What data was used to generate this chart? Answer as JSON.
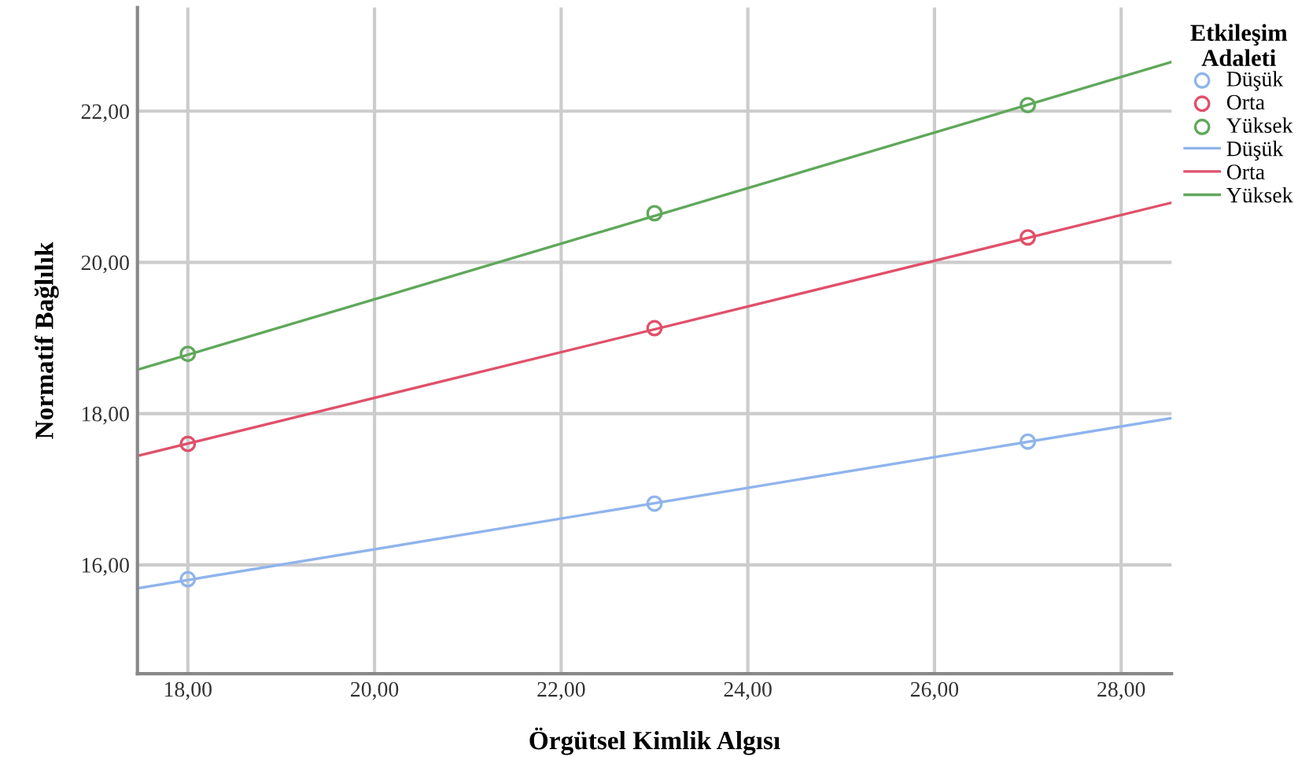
{
  "chart_data": {
    "type": "scatter",
    "xlabel": "Örgütsel Kimlik Algısı",
    "ylabel": "Normatif Bağlılık",
    "legend_title": "Etkileşim Adaleti",
    "legend": "top right",
    "grid": true,
    "xlim": [
      17.46,
      28.54
    ],
    "ylim": [
      14.56,
      23.37
    ],
    "xticks": [
      {
        "value": 18,
        "label": "18,00"
      },
      {
        "value": 20,
        "label": "20,00"
      },
      {
        "value": 22,
        "label": "22,00"
      },
      {
        "value": 24,
        "label": "24,00"
      },
      {
        "value": 26,
        "label": "26,00"
      },
      {
        "value": 28,
        "label": "28,00"
      }
    ],
    "yticks": [
      {
        "value": 16,
        "label": "16,00"
      },
      {
        "value": 18,
        "label": "18,00"
      },
      {
        "value": 20,
        "label": "20,00"
      },
      {
        "value": 22,
        "label": "22,00"
      }
    ],
    "series": [
      {
        "name": "Düşük",
        "marker": "circle",
        "color": "#8fb4ec",
        "x": [
          18,
          23,
          27
        ],
        "values": [
          15.81,
          16.81,
          17.63
        ]
      },
      {
        "name": "Orta",
        "marker": "circle",
        "color": "#e0506a",
        "x": [
          18,
          23,
          27
        ],
        "values": [
          17.6,
          19.13,
          20.33
        ]
      },
      {
        "name": "Yüksek",
        "marker": "circle",
        "color": "#5fa85a",
        "x": [
          18,
          23,
          27
        ],
        "values": [
          18.79,
          20.65,
          22.08
        ]
      },
      {
        "name": "Düşük",
        "type": "line",
        "marker": "none",
        "color": "#8fb4ec",
        "x": [
          17.46,
          28.54
        ],
        "values": [
          15.69,
          17.94
        ]
      },
      {
        "name": "Orta",
        "type": "line",
        "marker": "none",
        "color": "#e0506a",
        "x": [
          17.46,
          28.54
        ],
        "values": [
          17.44,
          20.79
        ]
      },
      {
        "name": "Yüksek",
        "type": "line",
        "marker": "none",
        "color": "#5fa85a",
        "x": [
          17.46,
          28.54
        ],
        "values": [
          18.58,
          22.65
        ]
      }
    ]
  }
}
